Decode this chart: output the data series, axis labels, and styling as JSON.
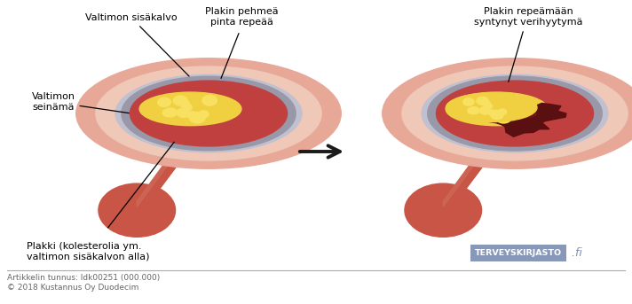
{
  "label_valtimon_sisaKalvo": "Valtimon sisäkalvo",
  "label_valtimon_seinämä": "Valtimon\nseinämä",
  "label_plakki": "Plakki (kolesterolia ym.\nvaltimon sisäkalvon alla)",
  "label_pehmeä": "Plakin pehmeä\npinta repeää",
  "label_verihyytymä": "Plakin repeämään\nsyntynyt verihyytymä",
  "label_terveys": "TERVEYSKIRJASTO",
  "label_fi": " .fi",
  "footer_line1": "Artikkelin tunnus: Idk00251 (000.000)",
  "footer_line2": "© 2018 Kustannus Oy Duodecim",
  "color_outer_dark": "#b84535",
  "color_outer_mid": "#c85545",
  "color_outer_light": "#d07060",
  "color_wall_pink": "#e8a898",
  "color_inner_pink": "#f0c8b8",
  "color_lumen": "#c04040",
  "color_plaque_yellow": "#f0d040",
  "color_plaque_light": "#f8e060",
  "color_plaque_dark": "#d4a010",
  "color_fibrous_cap": "#9898a8",
  "color_fibrous_cap_light": "#c0c0d0",
  "color_clot": "#5a1010",
  "color_clot_mid": "#7a1818",
  "color_arrow": "#1a1a1a",
  "terveys_box_color": "#8898b8",
  "terveys_text_color": "#ffffff",
  "fi_color": "#8090b0"
}
